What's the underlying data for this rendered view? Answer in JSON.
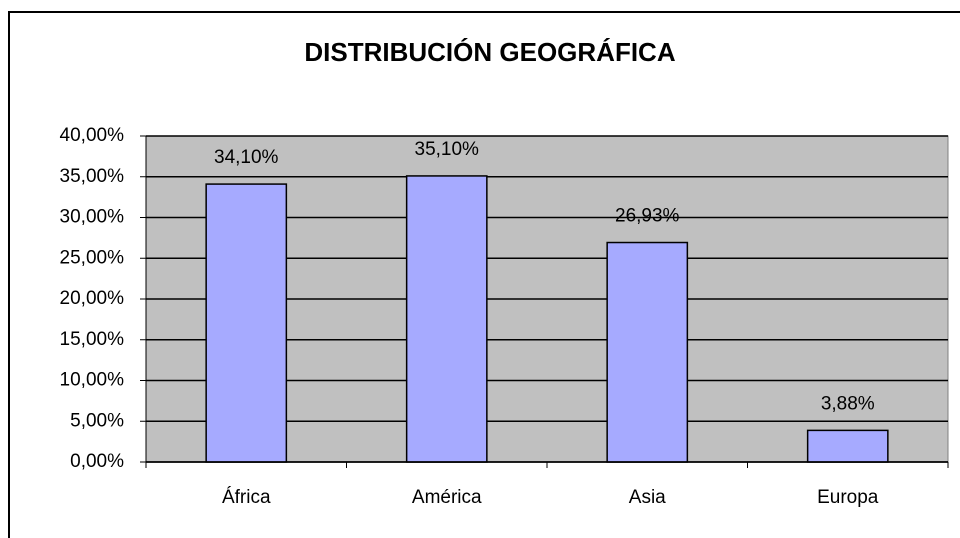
{
  "chart_data": {
    "type": "bar",
    "title": "DISTRIBUCIÓN GEOGRÁFICA",
    "categories": [
      "África",
      "América",
      "Asia",
      "Europa"
    ],
    "values": [
      34.1,
      35.1,
      26.93,
      3.88
    ],
    "value_labels": [
      "34,10%",
      "35,10%",
      "26,93%",
      "3,88%"
    ],
    "color": "#a6aaff",
    "ylim": [
      0,
      40
    ],
    "yticks": [
      {
        "value": 0,
        "label": "0,00%"
      },
      {
        "value": 5,
        "label": "5,00%"
      },
      {
        "value": 10,
        "label": "10,00%"
      },
      {
        "value": 15,
        "label": "15,00%"
      },
      {
        "value": 20,
        "label": "20,00%"
      },
      {
        "value": 25,
        "label": "25,00%"
      },
      {
        "value": 30,
        "label": "30,00%"
      },
      {
        "value": 35,
        "label": "35,00%"
      },
      {
        "value": 40,
        "label": "40,00%"
      }
    ],
    "grid": true
  }
}
